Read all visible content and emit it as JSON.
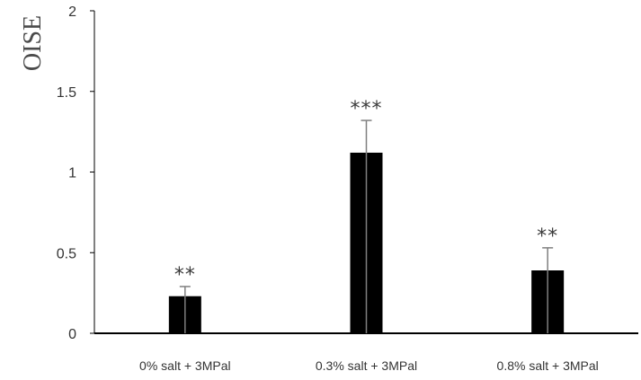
{
  "chart_data": {
    "type": "bar",
    "title": "",
    "xlabel": "",
    "ylabel": "OISE",
    "ylim": [
      0,
      2
    ],
    "yticks": [
      0,
      0.5,
      1,
      1.5,
      2
    ],
    "ytick_labels": [
      "0",
      "0.5",
      "1",
      "1.5",
      "2"
    ],
    "categories": [
      "0% salt + 3MPal",
      "0.3% salt + 3MPal",
      "0.8% salt + 3MPal"
    ],
    "values": [
      0.23,
      1.12,
      0.39
    ],
    "errors": [
      0.06,
      0.2,
      0.14
    ],
    "significance": [
      "**",
      "***",
      "**"
    ],
    "grid": false,
    "colors": {
      "bar": "#000000",
      "error_bar": "#7f7f7f",
      "axis": "#000000"
    }
  }
}
